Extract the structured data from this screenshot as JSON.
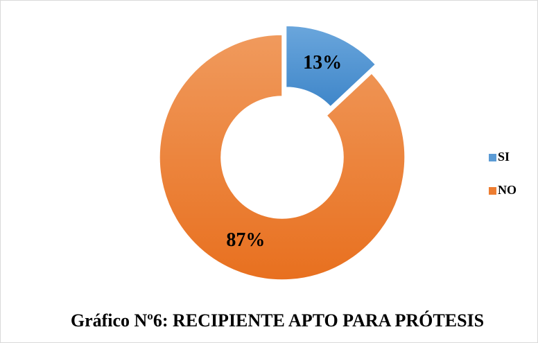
{
  "chart_data": {
    "type": "donut",
    "title": "Gráfico Nº6: RECIPIENTE APTO PARA PRÓTESIS",
    "categories": [
      "SI",
      "NO"
    ],
    "values": [
      13,
      87
    ],
    "value_labels": [
      "13%",
      "87%"
    ],
    "colors": [
      "#5b9bd5",
      "#ed7d31"
    ],
    "legend": "right"
  }
}
